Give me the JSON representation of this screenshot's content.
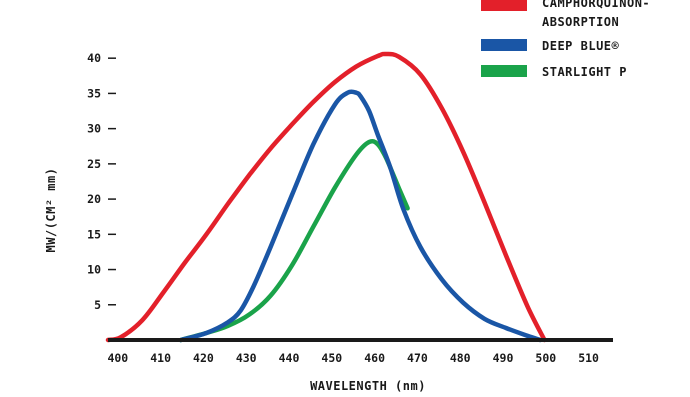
{
  "chart_data": {
    "type": "line",
    "xlabel": "WAVELENGTH (nm)",
    "ylabel": "MW/(CM² mm)",
    "xlim": [
      397,
      515
    ],
    "ylim": [
      0,
      44
    ],
    "x_ticks": [
      400,
      410,
      420,
      430,
      440,
      450,
      460,
      470,
      480,
      490,
      500,
      510
    ],
    "y_ticks": [
      5,
      10,
      15,
      20,
      25,
      30,
      35,
      40
    ],
    "grid": false,
    "legend_position": "top-right",
    "series": [
      {
        "name": "CAMPHORQUINON-ABSORPTION",
        "color": "#e3202a",
        "x": [
          397,
          400,
          405,
          410,
          415,
          420,
          425,
          430,
          435,
          440,
          445,
          450,
          455,
          460,
          462,
          465,
          470,
          475,
          480,
          485,
          490,
          495,
          499
        ],
        "y": [
          0,
          0.4,
          2.8,
          6.8,
          11,
          15,
          19.3,
          23.4,
          27.2,
          30.6,
          33.8,
          36.6,
          38.8,
          40.3,
          40.6,
          40.2,
          37.7,
          32.9,
          26.7,
          19.5,
          12,
          4.8,
          0
        ]
      },
      {
        "name": "DEEP BLUE®",
        "color": "#1a56a6",
        "x": [
          414,
          420,
          425,
          428,
          431,
          435,
          440,
          445,
          450,
          453,
          455,
          456,
          458,
          460,
          463,
          466,
          470,
          475,
          480,
          485,
          490,
          495,
          498
        ],
        "y": [
          0,
          1,
          2.5,
          4.2,
          7.6,
          13.2,
          20.6,
          27.8,
          33.4,
          35.1,
          35.1,
          34.6,
          32.5,
          29.2,
          24.4,
          18.6,
          13.2,
          8.6,
          5.3,
          3,
          1.7,
          0.6,
          0
        ]
      },
      {
        "name": "STARLIGHT P",
        "color": "#1aa34a",
        "x": [
          414,
          420,
          425,
          430,
          435,
          440,
          445,
          450,
          455,
          458,
          460,
          462,
          465,
          467
        ],
        "y": [
          0,
          1,
          2,
          3.6,
          6.3,
          10.6,
          16.1,
          21.6,
          26.3,
          28.1,
          27.8,
          25.8,
          21.5,
          18.7
        ]
      }
    ]
  }
}
